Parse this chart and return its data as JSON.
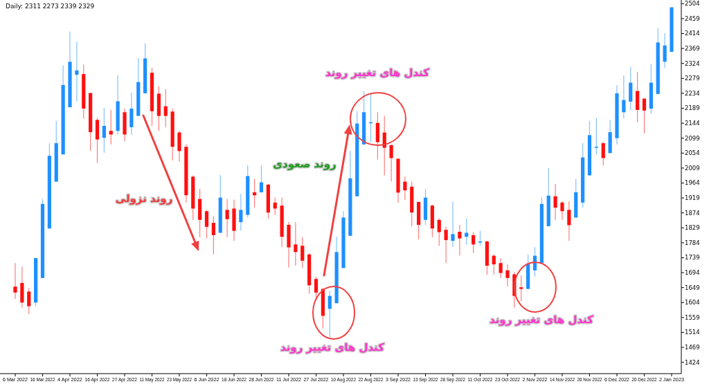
{
  "chart_data": {
    "type": "candlestick",
    "title": "Daily:  2311 2273 2339 2329",
    "categories": [
      "6 Mar 2022",
      null,
      null,
      null,
      "16 Mar 2022",
      null,
      null,
      null,
      "4 Apr 2022",
      null,
      null,
      null,
      "16 Apr 2022",
      null,
      null,
      null,
      "27 Apr 2022",
      null,
      null,
      null,
      "11 May 2022",
      null,
      null,
      null,
      "23 May 2022",
      null,
      null,
      null,
      "6 Jun 2022",
      null,
      null,
      null,
      "18 Jun 2022",
      null,
      null,
      null,
      "28 Jun 2022",
      null,
      null,
      null,
      "11 Jul 2022",
      null,
      null,
      null,
      "27 Jul 2022",
      null,
      null,
      null,
      "10 Aug 2022",
      null,
      null,
      null,
      "22 Aug 2022",
      null,
      null,
      null,
      "3 Sep 2022",
      null,
      null,
      null,
      "13 Sep 2022",
      null,
      null,
      null,
      "28 Sep 2022",
      null,
      null,
      null,
      "11 Oct 2022",
      null,
      null,
      null,
      "23 Oct 2022",
      null,
      null,
      null,
      "2 Nov 2022",
      null,
      null,
      null,
      "14 Nov 2022",
      null,
      null,
      null,
      "26 Nov 2022",
      null,
      null,
      null,
      "6 Dec 2022",
      null,
      null,
      null,
      "20 Dec 2022",
      null,
      null,
      null,
      "2 Jan 2023"
    ],
    "ohlc": [
      [
        1652,
        1723,
        1615,
        1634
      ],
      [
        1663,
        1712,
        1589,
        1604
      ],
      [
        1637,
        1648,
        1569,
        1593
      ],
      [
        1604,
        1738,
        1593,
        1738
      ],
      [
        1678,
        1916,
        1678,
        1901
      ],
      [
        1827,
        2084,
        1827,
        2046
      ],
      [
        1968,
        2151,
        1968,
        2084
      ],
      [
        2050,
        2318,
        2050,
        2259
      ],
      [
        2192,
        2420,
        2192,
        2329
      ],
      [
        2290,
        2389,
        2210,
        2303
      ],
      [
        2292,
        2320,
        2158,
        2188
      ],
      [
        2235,
        2235,
        2061,
        2117
      ],
      [
        2154,
        2160,
        2024,
        2095
      ],
      [
        2100,
        2190,
        2055,
        2136
      ],
      [
        2121,
        2184,
        2080,
        2110
      ],
      [
        2121,
        2288,
        2110,
        2210
      ],
      [
        2177,
        2188,
        2090,
        2110
      ],
      [
        2132,
        2236,
        2110,
        2188
      ],
      [
        2166,
        2340,
        2166,
        2268
      ],
      [
        2234,
        2385,
        2234,
        2339
      ],
      [
        2296,
        2311,
        2136,
        2180
      ],
      [
        2233,
        2255,
        2121,
        2166
      ],
      [
        2195,
        2247,
        2132,
        2166
      ],
      [
        2179,
        2188,
        2032,
        2073
      ],
      [
        2116,
        2121,
        2028,
        2060
      ],
      [
        2073,
        2080,
        1905,
        1927
      ],
      [
        1983,
        1987,
        1853,
        1887
      ],
      [
        1916,
        1946,
        1801,
        1853
      ],
      [
        1879,
        1883,
        1797,
        1832
      ],
      [
        1844,
        1864,
        1749,
        1807
      ],
      [
        1814,
        1988,
        1814,
        1920
      ],
      [
        1883,
        1916,
        1801,
        1855
      ],
      [
        1887,
        1914,
        1790,
        1820
      ],
      [
        1846,
        1931,
        1820,
        1883
      ],
      [
        1868,
        2017,
        1860,
        1985
      ],
      [
        1936,
        1976,
        1890,
        1927
      ],
      [
        1936,
        2018,
        1935,
        1966
      ],
      [
        1959,
        1961,
        1857,
        1875
      ],
      [
        1905,
        1920,
        1868,
        1887
      ],
      [
        1896,
        1920,
        1771,
        1802
      ],
      [
        1838,
        1846,
        1710,
        1770
      ],
      [
        1779,
        1846,
        1715,
        1756
      ],
      [
        1775,
        1801,
        1708,
        1730
      ],
      [
        1749,
        1753,
        1630,
        1656
      ],
      [
        1675,
        1682,
        1611,
        1634
      ],
      [
        1645,
        1648,
        1526,
        1564
      ],
      [
        1585,
        1639,
        1500,
        1624
      ],
      [
        1602,
        1802,
        1602,
        1756
      ],
      [
        1708,
        1879,
        1708,
        1860
      ],
      [
        1805,
        2061,
        1805,
        1978
      ],
      [
        1924,
        2180,
        1924,
        2143
      ],
      [
        2080,
        2240,
        2080,
        2177
      ],
      [
        2145,
        2233,
        2087,
        2147
      ],
      [
        2145,
        2177,
        2035,
        2087
      ],
      [
        2116,
        2166,
        1987,
        2070
      ],
      [
        2078,
        2080,
        1968,
        2039
      ],
      [
        2037,
        2039,
        1905,
        1935
      ],
      [
        1968,
        1983,
        1913,
        1942
      ],
      [
        1953,
        1968,
        1834,
        1875
      ],
      [
        1907,
        1907,
        1794,
        1838
      ],
      [
        1853,
        1946,
        1838,
        1920
      ],
      [
        1896,
        1899,
        1801,
        1827
      ],
      [
        1853,
        1857,
        1775,
        1816
      ],
      [
        1823,
        1832,
        1723,
        1792
      ],
      [
        1790,
        1907,
        1771,
        1810
      ],
      [
        1817,
        1838,
        1745,
        1797
      ],
      [
        1802,
        1857,
        1779,
        1814
      ],
      [
        1807,
        1816,
        1753,
        1779
      ],
      [
        1788,
        1820,
        1775,
        1788
      ],
      [
        1788,
        1790,
        1688,
        1715
      ],
      [
        1745,
        1749,
        1689,
        1719
      ],
      [
        1723,
        1738,
        1678,
        1693
      ],
      [
        1701,
        1719,
        1652,
        1678
      ],
      [
        1689,
        1697,
        1589,
        1624
      ],
      [
        1650,
        1686,
        1608,
        1645
      ],
      [
        1645,
        1749,
        1645,
        1721
      ],
      [
        1701,
        1771,
        1682,
        1745
      ],
      [
        1723,
        1920,
        1723,
        1901
      ],
      [
        1834,
        2009,
        1834,
        1926
      ],
      [
        1924,
        1961,
        1853,
        1890
      ],
      [
        1905,
        1909,
        1853,
        1879
      ],
      [
        1883,
        1909,
        1790,
        1837
      ],
      [
        1860,
        1976,
        1860,
        1936
      ],
      [
        1905,
        2084,
        1890,
        2041
      ],
      [
        1987,
        2151,
        1987,
        2108
      ],
      [
        2070,
        2160,
        2050,
        2073
      ],
      [
        2084,
        2087,
        2017,
        2039
      ],
      [
        2054,
        2154,
        2054,
        2117
      ],
      [
        2099,
        2259,
        2080,
        2234
      ],
      [
        2177,
        2288,
        2158,
        2214
      ],
      [
        2209,
        2313,
        2184,
        2266
      ],
      [
        2241,
        2299,
        2147,
        2184
      ],
      [
        2218,
        2219,
        2113,
        2182
      ],
      [
        2188,
        2322,
        2173,
        2266
      ],
      [
        2232,
        2430,
        2232,
        2387
      ],
      [
        2329,
        2415,
        2311,
        2378
      ],
      [
        2359,
        2493,
        2359,
        2493
      ]
    ],
    "colors": [
      "#ff1010",
      "#ff1010",
      "#ff1010",
      "#1e90ff",
      "#1e90ff",
      "#1e90ff",
      "#1e90ff",
      "#1e90ff",
      "#1e90ff",
      "#1e90ff",
      "#ff1010",
      "#ff1010",
      "#ff1010",
      "#1e90ff",
      "#ff1010",
      "#1e90ff",
      "#ff1010",
      "#1e90ff",
      "#1e90ff",
      "#1e90ff",
      "#ff1010",
      "#ff1010",
      "#ff1010",
      "#ff1010",
      "#ff1010",
      "#ff1010",
      "#ff1010",
      "#ff1010",
      "#ff1010",
      "#ff1010",
      "#1e90ff",
      "#ff1010",
      "#ff1010",
      "#1e90ff",
      "#1e90ff",
      "#ff1010",
      "#1e90ff",
      "#ff1010",
      "#ff1010",
      "#ff1010",
      "#ff1010",
      "#ff1010",
      "#ff1010",
      "#ff1010",
      "#ff1010",
      "#ff1010",
      "#1e90ff",
      "#1e90ff",
      "#1e90ff",
      "#1e90ff",
      "#1e90ff",
      "#1e90ff",
      "#1e90ff",
      "#ff1010",
      "#ff1010",
      "#ff1010",
      "#ff1010",
      "#ff1010",
      "#ff1010",
      "#ff1010",
      "#1e90ff",
      "#ff1010",
      "#ff1010",
      "#ff1010",
      "#1e90ff",
      "#ff1010",
      "#1e90ff",
      "#ff1010",
      "#1e90ff",
      "#ff1010",
      "#ff1010",
      "#ff1010",
      "#ff1010",
      "#ff1010",
      "#ff1010",
      "#1e90ff",
      "#1e90ff",
      "#1e90ff",
      "#1e90ff",
      "#ff1010",
      "#ff1010",
      "#ff1010",
      "#1e90ff",
      "#1e90ff",
      "#1e90ff",
      "#1e90ff",
      "#ff1010",
      "#1e90ff",
      "#1e90ff",
      "#1e90ff",
      "#1e90ff",
      "#ff1010",
      "#ff1010",
      "#1e90ff",
      "#1e90ff",
      "#1e90ff",
      "#1e90ff"
    ],
    "ylim": [
      1390,
      2515
    ],
    "yticks": [
      1424,
      1469,
      1514,
      1559,
      1604,
      1649,
      1694,
      1739,
      1784,
      1829,
      1874,
      1919,
      1964,
      2009,
      2054,
      2099,
      2144,
      2189,
      2234,
      2279,
      2324,
      2369,
      2414,
      2459,
      2504
    ],
    "annotations": [
      "روند نزولی",
      "روند صعودی",
      "کندل های تغییر روند",
      "کندل های تغییر روند",
      "کندل های تغییر روند"
    ]
  }
}
